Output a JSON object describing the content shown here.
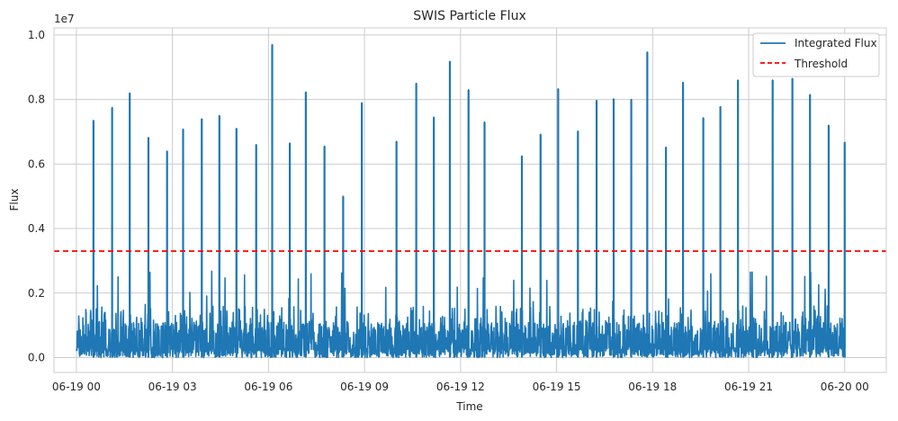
{
  "chart_data": {
    "type": "line",
    "title": "SWIS Particle Flux",
    "xlabel": "Time",
    "ylabel": "Flux",
    "y_offset_label": "1e7",
    "x_range": [
      "2024-06-18 23:18",
      "2024-06-20 01:18"
    ],
    "x_data_start": "2024-06-19 00:00",
    "x_data_end": "2024-06-20 00:00",
    "ylim": [
      -460000.0,
      10220000.0
    ],
    "x_ticks": [
      {
        "t": "2024-06-19 00:00",
        "label": "06-19 00"
      },
      {
        "t": "2024-06-19 03:00",
        "label": "06-19 03"
      },
      {
        "t": "2024-06-19 06:00",
        "label": "06-19 06"
      },
      {
        "t": "2024-06-19 09:00",
        "label": "06-19 09"
      },
      {
        "t": "2024-06-19 12:00",
        "label": "06-19 12"
      },
      {
        "t": "2024-06-19 15:00",
        "label": "06-19 15"
      },
      {
        "t": "2024-06-19 18:00",
        "label": "06-19 18"
      },
      {
        "t": "2024-06-19 21:00",
        "label": "06-19 21"
      },
      {
        "t": "2024-06-20 00:00",
        "label": "06-20 00"
      }
    ],
    "y_ticks": [
      {
        "v": 0,
        "label": "0.0"
      },
      {
        "v": 2000000,
        "label": "0.2"
      },
      {
        "v": 4000000,
        "label": "0.4"
      },
      {
        "v": 6000000,
        "label": "0.6"
      },
      {
        "v": 8000000,
        "label": "0.8"
      },
      {
        "v": 10000000,
        "label": "1.0"
      }
    ],
    "grid": true,
    "legend_position": "top-right",
    "threshold": {
      "name": "Threshold",
      "value": 3300000,
      "color": "#ff0000",
      "style": "dashed"
    },
    "series": [
      {
        "name": "Integrated Flux",
        "color": "#1f77b4",
        "baseline_max": 1600000,
        "spikes": [
          {
            "t": "2024-06-19 00:32",
            "v": 7350000
          },
          {
            "t": "2024-06-19 01:07",
            "v": 7750000
          },
          {
            "t": "2024-06-19 01:40",
            "v": 8200000
          },
          {
            "t": "2024-06-19 02:15",
            "v": 6820000
          },
          {
            "t": "2024-06-19 02:50",
            "v": 6400000
          },
          {
            "t": "2024-06-19 03:20",
            "v": 7080000
          },
          {
            "t": "2024-06-19 03:55",
            "v": 7400000
          },
          {
            "t": "2024-06-19 04:28",
            "v": 7500000
          },
          {
            "t": "2024-06-19 05:00",
            "v": 7100000
          },
          {
            "t": "2024-06-19 05:37",
            "v": 6600000
          },
          {
            "t": "2024-06-19 06:07",
            "v": 9700000
          },
          {
            "t": "2024-06-19 06:40",
            "v": 6650000
          },
          {
            "t": "2024-06-19 07:10",
            "v": 8230000
          },
          {
            "t": "2024-06-19 07:45",
            "v": 6550000
          },
          {
            "t": "2024-06-19 08:20",
            "v": 5000000
          },
          {
            "t": "2024-06-19 08:55",
            "v": 7900000
          },
          {
            "t": "2024-06-19 10:00",
            "v": 6700000
          },
          {
            "t": "2024-06-19 10:37",
            "v": 8500000
          },
          {
            "t": "2024-06-19 11:10",
            "v": 7450000
          },
          {
            "t": "2024-06-19 11:40",
            "v": 9180000
          },
          {
            "t": "2024-06-19 12:15",
            "v": 8300000
          },
          {
            "t": "2024-06-19 12:45",
            "v": 7300000
          },
          {
            "t": "2024-06-19 13:55",
            "v": 6250000
          },
          {
            "t": "2024-06-19 14:30",
            "v": 6920000
          },
          {
            "t": "2024-06-19 15:03",
            "v": 8330000
          },
          {
            "t": "2024-06-19 15:40",
            "v": 7020000
          },
          {
            "t": "2024-06-19 16:15",
            "v": 7970000
          },
          {
            "t": "2024-06-19 16:47",
            "v": 8020000
          },
          {
            "t": "2024-06-19 17:20",
            "v": 8000000
          },
          {
            "t": "2024-06-19 17:50",
            "v": 9470000
          },
          {
            "t": "2024-06-19 18:25",
            "v": 6520000
          },
          {
            "t": "2024-06-19 18:57",
            "v": 8530000
          },
          {
            "t": "2024-06-19 19:35",
            "v": 7430000
          },
          {
            "t": "2024-06-19 20:07",
            "v": 7780000
          },
          {
            "t": "2024-06-19 20:40",
            "v": 8600000
          },
          {
            "t": "2024-06-19 21:45",
            "v": 8600000
          },
          {
            "t": "2024-06-19 22:22",
            "v": 8650000
          },
          {
            "t": "2024-06-19 22:55",
            "v": 8150000
          },
          {
            "t": "2024-06-19 23:30",
            "v": 7200000
          },
          {
            "t": "2024-06-20 00:00",
            "v": 6670000
          }
        ]
      }
    ]
  }
}
